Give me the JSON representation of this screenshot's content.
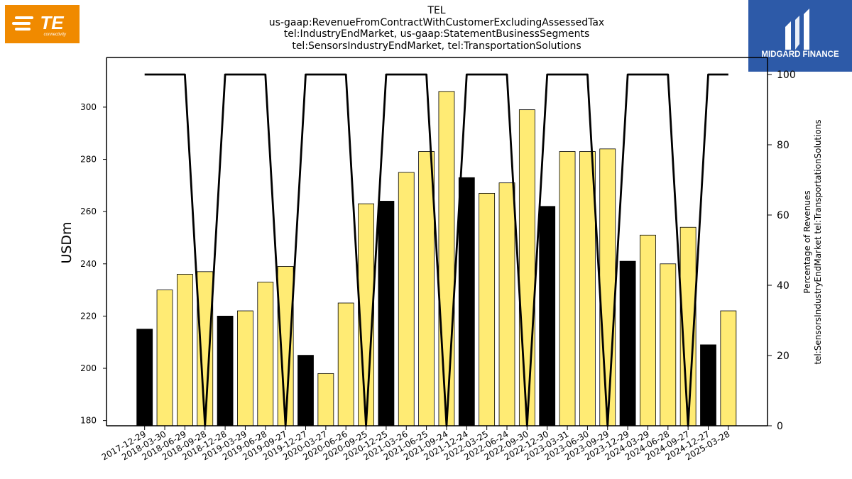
{
  "header": {
    "title_lines": [
      "TEL",
      "us-gaap:RevenueFromContractWithCustomerExcludingAssessedTax",
      "tel:IndustryEndMarket, us-gaap:StatementBusinessSegments",
      "tel:SensorsIndustryEndMarket, tel:TransportationSolutions"
    ]
  },
  "logos": {
    "left": {
      "text": "TE",
      "subtext": "connectivity",
      "color": "#f08a00"
    },
    "right": {
      "text": "MIDGARD FINANCE",
      "color": "#2d5aa8"
    }
  },
  "chart_data": {
    "type": "bar",
    "categories": [
      "2017-12-29",
      "2018-03-30",
      "2018-06-29",
      "2018-09-28",
      "2018-12-28",
      "2019-03-29",
      "2019-06-28",
      "2019-09-27",
      "2019-12-27",
      "2020-03-27",
      "2020-06-26",
      "2020-09-25",
      "2020-12-25",
      "2021-03-26",
      "2021-06-25",
      "2021-09-24",
      "2021-12-24",
      "2022-03-25",
      "2022-06-24",
      "2022-09-30",
      "2022-12-30",
      "2023-03-31",
      "2023-06-30",
      "2023-09-29",
      "2023-12-29",
      "2024-03-29",
      "2024-06-28",
      "2024-09-27",
      "2024-12-27",
      "2025-03-28"
    ],
    "series": [
      {
        "values": [
          215,
          230,
          236,
          237,
          220,
          222,
          233,
          239,
          205,
          198,
          225,
          263,
          264,
          275,
          283,
          306,
          273,
          267,
          271,
          299,
          262,
          283,
          283,
          284,
          241,
          251,
          240,
          254,
          209,
          222
        ],
        "colors": [
          "#000000",
          "#ffeb74",
          "#ffeb74",
          "#ffeb74",
          "#000000",
          "#ffeb74",
          "#ffeb74",
          "#ffeb74",
          "#000000",
          "#ffeb74",
          "#ffeb74",
          "#ffeb74",
          "#000000",
          "#ffeb74",
          "#ffeb74",
          "#ffeb74",
          "#000000",
          "#ffeb74",
          "#ffeb74",
          "#ffeb74",
          "#000000",
          "#ffeb74",
          "#ffeb74",
          "#ffeb74",
          "#000000",
          "#ffeb74",
          "#ffeb74",
          "#ffeb74",
          "#000000",
          "#ffeb74"
        ]
      },
      {
        "axis": "right",
        "type": "line",
        "values": [
          100,
          100,
          100,
          0,
          100,
          100,
          100,
          0,
          100,
          100,
          100,
          0,
          100,
          100,
          100,
          0,
          100,
          100,
          100,
          0,
          100,
          100,
          100,
          0,
          100,
          100,
          100,
          0,
          100,
          100
        ],
        "color": "#000000"
      }
    ],
    "ylabel": "USDm",
    "ylabel_right": [
      "Percentage of Revenues",
      "tel:SensorsIndustryEndMarket tel:TransportationSolutions"
    ],
    "ylim": [
      178,
      319
    ],
    "ylim_right": [
      0,
      100
    ],
    "yticks": [
      180,
      200,
      220,
      240,
      260,
      280,
      300
    ],
    "yticks_right": [
      0,
      20,
      40,
      60,
      80,
      100
    ],
    "grid": false
  }
}
